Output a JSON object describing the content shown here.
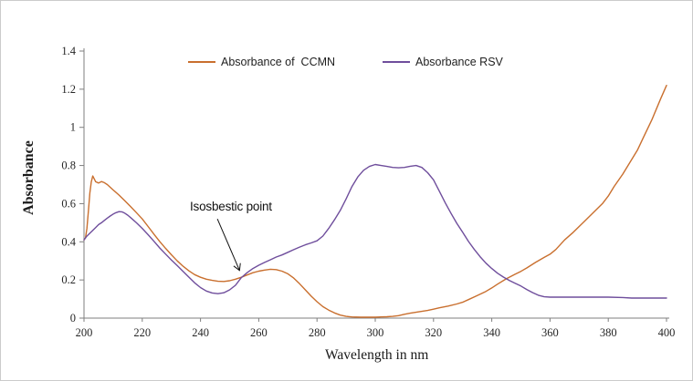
{
  "window": {
    "background": "#ffffff",
    "border_color": "#cbcbcb"
  },
  "chart_data": {
    "type": "line",
    "title": "",
    "xlabel": "Wavelength in nm",
    "ylabel": "Absorbance",
    "xlim": [
      200,
      400
    ],
    "ylim": [
      0,
      1.4
    ],
    "x_ticks": [
      200,
      220,
      240,
      260,
      280,
      300,
      320,
      340,
      360,
      380,
      400
    ],
    "y_ticks": [
      0,
      0.2,
      0.4,
      0.6,
      0.8,
      1,
      1.2,
      1.4
    ],
    "y_tick_labels": [
      "0",
      "0.2",
      "0.4",
      "0.6",
      "0.8",
      "1",
      "1.2",
      "1.4"
    ],
    "grid": false,
    "legend_position": "top-center-inside",
    "axis_color": "#7f7f7f",
    "tick_text_color": "#262626",
    "series": [
      {
        "name": "Absorbance of  CCMN",
        "color": "#C96F2E",
        "points": [
          [
            200,
            0.41
          ],
          [
            200.5,
            0.42
          ],
          [
            201,
            0.47
          ],
          [
            201.5,
            0.56
          ],
          [
            202,
            0.655
          ],
          [
            202.5,
            0.715
          ],
          [
            203,
            0.745
          ],
          [
            203.5,
            0.73
          ],
          [
            204,
            0.715
          ],
          [
            205,
            0.708
          ],
          [
            206,
            0.716
          ],
          [
            207,
            0.71
          ],
          [
            208,
            0.7
          ],
          [
            210,
            0.672
          ],
          [
            212,
            0.645
          ],
          [
            214,
            0.615
          ],
          [
            216,
            0.585
          ],
          [
            218,
            0.553
          ],
          [
            220,
            0.52
          ],
          [
            222,
            0.48
          ],
          [
            224,
            0.44
          ],
          [
            226,
            0.402
          ],
          [
            228,
            0.366
          ],
          [
            230,
            0.332
          ],
          [
            232,
            0.3
          ],
          [
            234,
            0.272
          ],
          [
            236,
            0.248
          ],
          [
            238,
            0.228
          ],
          [
            240,
            0.214
          ],
          [
            242,
            0.204
          ],
          [
            244,
            0.198
          ],
          [
            246,
            0.193
          ],
          [
            248,
            0.192
          ],
          [
            250,
            0.196
          ],
          [
            252,
            0.204
          ],
          [
            254,
            0.214
          ],
          [
            256,
            0.226
          ],
          [
            258,
            0.238
          ],
          [
            260,
            0.246
          ],
          [
            262,
            0.252
          ],
          [
            264,
            0.256
          ],
          [
            266,
            0.254
          ],
          [
            268,
            0.246
          ],
          [
            270,
            0.232
          ],
          [
            272,
            0.21
          ],
          [
            274,
            0.18
          ],
          [
            276,
            0.148
          ],
          [
            278,
            0.115
          ],
          [
            280,
            0.086
          ],
          [
            282,
            0.06
          ],
          [
            284,
            0.042
          ],
          [
            286,
            0.027
          ],
          [
            288,
            0.016
          ],
          [
            290,
            0.009
          ],
          [
            292,
            0.006
          ],
          [
            295,
            0.005
          ],
          [
            298,
            0.005
          ],
          [
            300,
            0.005
          ],
          [
            302,
            0.006
          ],
          [
            304,
            0.007
          ],
          [
            306,
            0.009
          ],
          [
            308,
            0.013
          ],
          [
            310,
            0.02
          ],
          [
            312,
            0.026
          ],
          [
            315,
            0.033
          ],
          [
            318,
            0.04
          ],
          [
            320,
            0.047
          ],
          [
            322,
            0.054
          ],
          [
            325,
            0.063
          ],
          [
            328,
            0.074
          ],
          [
            330,
            0.083
          ],
          [
            332,
            0.097
          ],
          [
            335,
            0.118
          ],
          [
            338,
            0.14
          ],
          [
            340,
            0.158
          ],
          [
            342,
            0.178
          ],
          [
            345,
            0.206
          ],
          [
            348,
            0.23
          ],
          [
            350,
            0.245
          ],
          [
            352,
            0.263
          ],
          [
            355,
            0.292
          ],
          [
            358,
            0.318
          ],
          [
            360,
            0.335
          ],
          [
            362,
            0.36
          ],
          [
            365,
            0.41
          ],
          [
            368,
            0.45
          ],
          [
            370,
            0.48
          ],
          [
            372,
            0.51
          ],
          [
            375,
            0.555
          ],
          [
            378,
            0.6
          ],
          [
            380,
            0.64
          ],
          [
            382,
            0.69
          ],
          [
            385,
            0.755
          ],
          [
            388,
            0.83
          ],
          [
            390,
            0.88
          ],
          [
            392,
            0.945
          ],
          [
            395,
            1.04
          ],
          [
            398,
            1.15
          ],
          [
            400,
            1.22
          ]
        ]
      },
      {
        "name": "Absorbance RSV",
        "color": "#6F4E9C",
        "points": [
          [
            200,
            0.41
          ],
          [
            201,
            0.43
          ],
          [
            202,
            0.445
          ],
          [
            203,
            0.46
          ],
          [
            204,
            0.475
          ],
          [
            205,
            0.49
          ],
          [
            206,
            0.5
          ],
          [
            207,
            0.512
          ],
          [
            208,
            0.524
          ],
          [
            209,
            0.535
          ],
          [
            210,
            0.545
          ],
          [
            211,
            0.553
          ],
          [
            212,
            0.558
          ],
          [
            213,
            0.557
          ],
          [
            214,
            0.55
          ],
          [
            215,
            0.54
          ],
          [
            216,
            0.527
          ],
          [
            218,
            0.5
          ],
          [
            220,
            0.47
          ],
          [
            222,
            0.437
          ],
          [
            224,
            0.403
          ],
          [
            226,
            0.368
          ],
          [
            228,
            0.336
          ],
          [
            230,
            0.305
          ],
          [
            232,
            0.275
          ],
          [
            234,
            0.245
          ],
          [
            236,
            0.215
          ],
          [
            238,
            0.185
          ],
          [
            240,
            0.16
          ],
          [
            242,
            0.142
          ],
          [
            244,
            0.132
          ],
          [
            246,
            0.128
          ],
          [
            248,
            0.133
          ],
          [
            250,
            0.148
          ],
          [
            252,
            0.172
          ],
          [
            254,
            0.212
          ],
          [
            256,
            0.238
          ],
          [
            258,
            0.26
          ],
          [
            260,
            0.277
          ],
          [
            262,
            0.292
          ],
          [
            264,
            0.306
          ],
          [
            266,
            0.32
          ],
          [
            268,
            0.331
          ],
          [
            270,
            0.345
          ],
          [
            272,
            0.359
          ],
          [
            274,
            0.372
          ],
          [
            276,
            0.384
          ],
          [
            278,
            0.394
          ],
          [
            280,
            0.405
          ],
          [
            282,
            0.43
          ],
          [
            284,
            0.47
          ],
          [
            286,
            0.515
          ],
          [
            288,
            0.565
          ],
          [
            290,
            0.625
          ],
          [
            292,
            0.69
          ],
          [
            294,
            0.74
          ],
          [
            296,
            0.775
          ],
          [
            298,
            0.795
          ],
          [
            300,
            0.805
          ],
          [
            302,
            0.8
          ],
          [
            304,
            0.795
          ],
          [
            306,
            0.79
          ],
          [
            308,
            0.788
          ],
          [
            310,
            0.79
          ],
          [
            312,
            0.796
          ],
          [
            314,
            0.8
          ],
          [
            316,
            0.79
          ],
          [
            318,
            0.762
          ],
          [
            320,
            0.725
          ],
          [
            322,
            0.665
          ],
          [
            324,
            0.605
          ],
          [
            326,
            0.55
          ],
          [
            328,
            0.497
          ],
          [
            330,
            0.45
          ],
          [
            332,
            0.402
          ],
          [
            334,
            0.36
          ],
          [
            336,
            0.322
          ],
          [
            338,
            0.288
          ],
          [
            340,
            0.26
          ],
          [
            342,
            0.235
          ],
          [
            344,
            0.215
          ],
          [
            346,
            0.198
          ],
          [
            348,
            0.183
          ],
          [
            350,
            0.168
          ],
          [
            352,
            0.15
          ],
          [
            354,
            0.134
          ],
          [
            356,
            0.12
          ],
          [
            358,
            0.112
          ],
          [
            360,
            0.11
          ],
          [
            365,
            0.11
          ],
          [
            370,
            0.11
          ],
          [
            375,
            0.11
          ],
          [
            380,
            0.11
          ],
          [
            385,
            0.108
          ],
          [
            388,
            0.105
          ],
          [
            390,
            0.105
          ],
          [
            395,
            0.105
          ],
          [
            400,
            0.105
          ]
        ]
      }
    ],
    "annotations": [
      {
        "text": "Isosbestic point",
        "text_x": 236.5,
        "text_y": 0.62,
        "arrow": {
          "x1": 245.8,
          "y1": 0.52,
          "x2": 253.4,
          "y2": 0.25
        },
        "arrow_color": "#111111",
        "points_to": "crossing of CCMN and RSV curves near 253 nm, absorbance ~0.21"
      }
    ]
  }
}
